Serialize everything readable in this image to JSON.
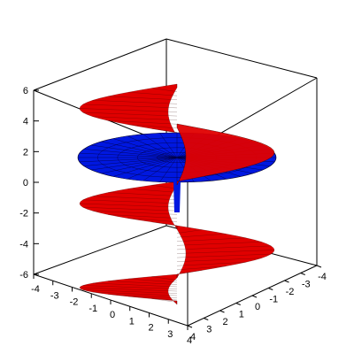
{
  "chart_data": {
    "type": "surface3d",
    "title": "",
    "axes": {
      "x": {
        "range": [
          -4,
          4
        ],
        "ticks": [
          "-4",
          "-3",
          "-2",
          "-1",
          "0",
          "1",
          "2",
          "3",
          "4"
        ]
      },
      "y": {
        "range": [
          -4,
          4
        ],
        "ticks": [
          "4",
          "3",
          "2",
          "1",
          "0",
          "-1",
          "-2",
          "-3",
          "-4"
        ]
      },
      "z": {
        "range": [
          -6,
          6
        ],
        "ticks": [
          "6",
          "4",
          "2",
          "0",
          "-2",
          "-4",
          "-6"
        ]
      }
    },
    "series": [
      {
        "kind": "helicoid",
        "color": "#e00000",
        "radius": [
          0,
          3.5
        ],
        "z_range": [
          -6,
          6
        ]
      },
      {
        "kind": "disk",
        "color": "#0018e0",
        "radius": [
          0,
          3.8
        ],
        "z_center": 1.1
      }
    ],
    "grid": false,
    "legend": "none"
  }
}
